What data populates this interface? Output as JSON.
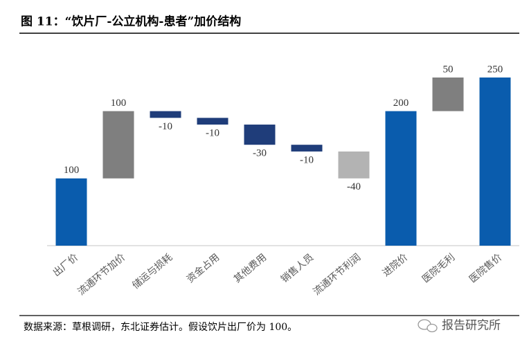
{
  "chart_data": {
    "type": "waterfall",
    "title": "图 11：“饮片厂-公立机构-患者”加价结构",
    "categories": [
      "出厂价",
      "流通环节加价",
      "储运与损耗",
      "资金占用",
      "其他费用",
      "销售人员",
      "流通环节利润",
      "进院价",
      "医院毛利",
      "医院售价"
    ],
    "values": [
      100,
      100,
      -10,
      -10,
      -30,
      -10,
      -40,
      200,
      50,
      250
    ],
    "is_total": [
      true,
      false,
      false,
      false,
      false,
      false,
      false,
      true,
      false,
      true
    ],
    "colors": [
      "#0a5cad",
      "#7f7f7f",
      "#1f3d7a",
      "#1f3d7a",
      "#1f3d7a",
      "#1f3d7a",
      "#b3b3b3",
      "#0a5cad",
      "#7f7f7f",
      "#0a5cad"
    ],
    "source": "数据来源：草根调研，东北证券估计。假设饮片出厂价为 100。",
    "watermark": "报告研究所"
  }
}
